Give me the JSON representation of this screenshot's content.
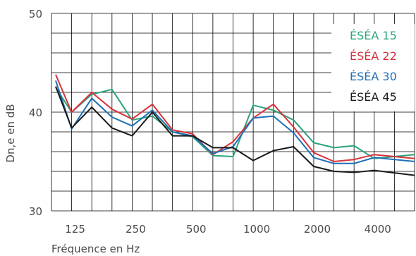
{
  "chart_data": {
    "type": "line",
    "xlabel": "Fréquence en Hz",
    "ylabel": "Dn,e en dB",
    "ylim": [
      30,
      50
    ],
    "y_ticks": [
      "50",
      "40",
      "30"
    ],
    "x_tick_labels": [
      "125",
      "250",
      "500",
      "1000",
      "2000",
      "4000"
    ],
    "x": [
      100,
      125,
      160,
      200,
      250,
      315,
      400,
      500,
      630,
      800,
      1000,
      1250,
      1600,
      2000,
      2500,
      3150,
      4000,
      5000
    ],
    "grid": true,
    "legend_position": "top-right",
    "series": [
      {
        "name": "ÉSÉA 15",
        "color": "#2aa57a",
        "values": [
          42.5,
          40.0,
          41.8,
          42.3,
          39.2,
          39.6,
          38.0,
          37.5,
          35.6,
          35.5,
          40.7,
          40.2,
          39.2,
          36.9,
          36.4,
          36.6,
          35.3,
          35.7
        ]
      },
      {
        "name": "ÉSÉA 22",
        "color": "#d8323c",
        "values": [
          43.8,
          40.0,
          42.0,
          40.3,
          39.3,
          40.8,
          38.2,
          37.8,
          35.7,
          37.0,
          39.4,
          40.8,
          38.5,
          35.9,
          35.0,
          35.2,
          35.7,
          35.3
        ]
      },
      {
        "name": "ÉSÉA 30",
        "color": "#1f6fb5",
        "values": [
          43.2,
          38.3,
          41.4,
          39.5,
          38.6,
          40.2,
          38.0,
          37.6,
          35.8,
          36.5,
          39.4,
          39.6,
          37.9,
          35.4,
          34.8,
          34.8,
          35.4,
          35.0
        ]
      },
      {
        "name": "ÉSÉA 45",
        "color": "#1a1a1a",
        "values": [
          42.6,
          38.4,
          40.5,
          38.4,
          37.6,
          40.0,
          37.6,
          37.6,
          36.4,
          36.4,
          35.1,
          36.1,
          36.5,
          34.5,
          34.0,
          33.9,
          34.1,
          33.6
        ]
      }
    ]
  }
}
